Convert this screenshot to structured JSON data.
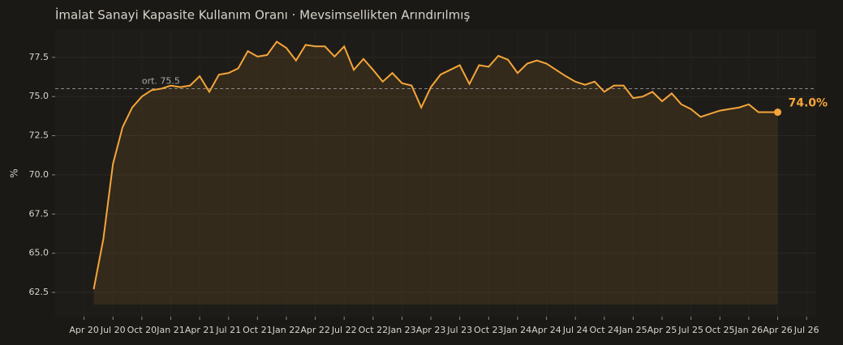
{
  "chart_data": {
    "type": "line",
    "title": "İmalat Sanayi Kapasite Kullanım Oranı · Mevsimsellikten Arındırılmış",
    "y_label": "%",
    "x": [
      "2020-05",
      "2020-06",
      "2020-07",
      "2020-08",
      "2020-09",
      "2020-10",
      "2020-11",
      "2020-12",
      "2021-01",
      "2021-02",
      "2021-03",
      "2021-04",
      "2021-05",
      "2021-06",
      "2021-07",
      "2021-08",
      "2021-09",
      "2021-10",
      "2021-11",
      "2021-12",
      "2022-01",
      "2022-02",
      "2022-03",
      "2022-04",
      "2022-05",
      "2022-06",
      "2022-07",
      "2022-08",
      "2022-09",
      "2022-10",
      "2022-11",
      "2022-12",
      "2023-01",
      "2023-02",
      "2023-03",
      "2023-04",
      "2023-05",
      "2023-06",
      "2023-07",
      "2023-08",
      "2023-09",
      "2023-10",
      "2023-11",
      "2023-12",
      "2024-01",
      "2024-02",
      "2024-03",
      "2024-04",
      "2024-05",
      "2024-06",
      "2024-07",
      "2024-08",
      "2024-09",
      "2024-10",
      "2024-11",
      "2024-12",
      "2025-01",
      "2025-02",
      "2025-03",
      "2025-04",
      "2025-05",
      "2025-06",
      "2025-07",
      "2025-08",
      "2025-09",
      "2025-10",
      "2025-11",
      "2025-12",
      "2026-01",
      "2026-02",
      "2026-03",
      "2026-04"
    ],
    "series": [
      {
        "name": "Kapasite Kullanım Oranı",
        "color": "#f5a53a",
        "values": [
          62.7,
          65.9,
          70.7,
          73.05,
          74.3,
          75.0,
          75.4,
          75.5,
          75.7,
          75.6,
          75.7,
          76.3,
          75.3,
          76.4,
          76.5,
          76.8,
          77.9,
          77.55,
          77.65,
          78.5,
          78.1,
          77.3,
          78.3,
          78.2,
          78.2,
          77.55,
          78.2,
          76.7,
          77.4,
          76.7,
          75.95,
          76.5,
          75.85,
          75.7,
          74.3,
          75.6,
          76.4,
          76.7,
          77.0,
          75.8,
          77.0,
          76.9,
          77.6,
          77.35,
          76.5,
          77.1,
          77.3,
          77.1,
          76.7,
          76.3,
          75.95,
          75.75,
          75.95,
          75.3,
          75.7,
          75.7,
          74.9,
          75.0,
          75.3,
          74.7,
          75.2,
          74.5,
          74.2,
          73.7,
          73.9,
          74.1,
          74.2,
          74.3,
          74.5,
          74.0,
          74.0,
          74.0
        ]
      }
    ],
    "mean": 75.5,
    "mean_label": "ort. 75.5",
    "end_label": "74.0%",
    "xlim": [
      "2020-01",
      "2026-08"
    ],
    "xticks": [
      {
        "value": "2020-04",
        "label": "Apr 20"
      },
      {
        "value": "2020-07",
        "label": "Jul 20"
      },
      {
        "value": "2020-10",
        "label": "Oct 20"
      },
      {
        "value": "2021-01",
        "label": "Jan 21"
      },
      {
        "value": "2021-04",
        "label": "Apr 21"
      },
      {
        "value": "2021-07",
        "label": "Jul 21"
      },
      {
        "value": "2021-10",
        "label": "Oct 21"
      },
      {
        "value": "2022-01",
        "label": "Jan 22"
      },
      {
        "value": "2022-04",
        "label": "Apr 22"
      },
      {
        "value": "2022-07",
        "label": "Jul 22"
      },
      {
        "value": "2022-10",
        "label": "Oct 22"
      },
      {
        "value": "2023-01",
        "label": "Jan 23"
      },
      {
        "value": "2023-04",
        "label": "Apr 23"
      },
      {
        "value": "2023-07",
        "label": "Jul 23"
      },
      {
        "value": "2023-10",
        "label": "Oct 23"
      },
      {
        "value": "2024-01",
        "label": "Jan 24"
      },
      {
        "value": "2024-04",
        "label": "Apr 24"
      },
      {
        "value": "2024-07",
        "label": "Jul 24"
      },
      {
        "value": "2024-10",
        "label": "Oct 24"
      },
      {
        "value": "2025-01",
        "label": "Jan 25"
      },
      {
        "value": "2025-04",
        "label": "Apr 25"
      },
      {
        "value": "2025-07",
        "label": "Jul 25"
      },
      {
        "value": "2025-10",
        "label": "Oct 25"
      },
      {
        "value": "2026-01",
        "label": "Jan 26"
      },
      {
        "value": "2026-04",
        "label": "Apr 26"
      },
      {
        "value": "2026-07",
        "label": "Jul 26"
      }
    ],
    "ylim": [
      60.95,
      79.3
    ],
    "yticks": [
      62.5,
      {
        "value": 65,
        "label": "65.0"
      },
      67.5,
      {
        "value": 70,
        "label": "70.0"
      },
      72.5,
      {
        "value": 75,
        "label": "75.0"
      },
      77.5
    ],
    "grid": true
  }
}
